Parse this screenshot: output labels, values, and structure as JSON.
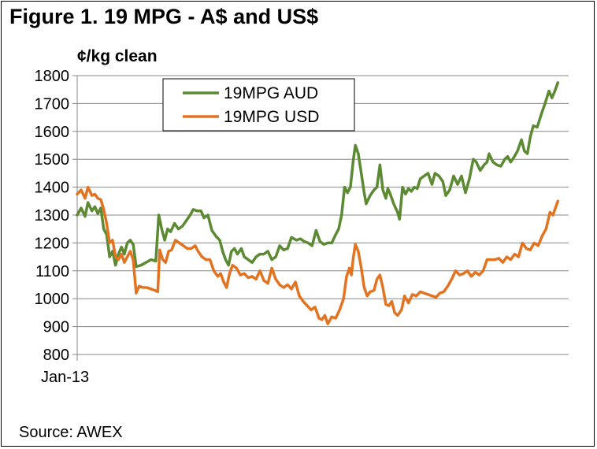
{
  "chart_data": {
    "type": "line",
    "title": "Figure 1. 19 MPG - A$  and US$",
    "ylabel": "¢/kg clean",
    "ylim": [
      800,
      1800
    ],
    "yticks": [
      800,
      900,
      1000,
      1100,
      1200,
      1300,
      1400,
      1500,
      1600,
      1700,
      1800
    ],
    "x_range": [
      0,
      100
    ],
    "xticks": [
      {
        "x": 0,
        "label": "Jan-13"
      }
    ],
    "grid": "horizontal",
    "legend_position": "top-center",
    "series": [
      {
        "name": "19MPG AUD",
        "color": "#5b8a32",
        "values": [
          [
            0,
            1300
          ],
          [
            0.8,
            1325
          ],
          [
            1.6,
            1295
          ],
          [
            2.2,
            1345
          ],
          [
            3,
            1315
          ],
          [
            3.6,
            1330
          ],
          [
            4.2,
            1305
          ],
          [
            4.8,
            1325
          ],
          [
            5.4,
            1250
          ],
          [
            6,
            1230
          ],
          [
            6.6,
            1150
          ],
          [
            7.2,
            1170
          ],
          [
            7.8,
            1120
          ],
          [
            8.4,
            1160
          ],
          [
            9,
            1185
          ],
          [
            9.6,
            1160
          ],
          [
            10.2,
            1200
          ],
          [
            10.8,
            1210
          ],
          [
            11.4,
            1195
          ],
          [
            12,
            1115
          ],
          [
            13,
            1120
          ],
          [
            14,
            1130
          ],
          [
            15,
            1140
          ],
          [
            16,
            1135
          ],
          [
            16.6,
            1300
          ],
          [
            17.2,
            1250
          ],
          [
            17.8,
            1210
          ],
          [
            18.4,
            1250
          ],
          [
            19,
            1240
          ],
          [
            19.8,
            1270
          ],
          [
            20.6,
            1250
          ],
          [
            21.4,
            1260
          ],
          [
            22.2,
            1280
          ],
          [
            23,
            1300
          ],
          [
            23.6,
            1320
          ],
          [
            24.4,
            1315
          ],
          [
            25.2,
            1315
          ],
          [
            25.8,
            1290
          ],
          [
            26.6,
            1300
          ],
          [
            27.4,
            1245
          ],
          [
            28.2,
            1225
          ],
          [
            29,
            1210
          ],
          [
            29.6,
            1170
          ],
          [
            30.2,
            1140
          ],
          [
            30.8,
            1120
          ],
          [
            31.4,
            1170
          ],
          [
            32,
            1180
          ],
          [
            32.6,
            1160
          ],
          [
            33.4,
            1180
          ],
          [
            34,
            1150
          ],
          [
            34.8,
            1140
          ],
          [
            35.6,
            1130
          ],
          [
            36.4,
            1150
          ],
          [
            37.2,
            1160
          ],
          [
            38,
            1160
          ],
          [
            38.8,
            1170
          ],
          [
            39.6,
            1140
          ],
          [
            40.4,
            1150
          ],
          [
            41.2,
            1190
          ],
          [
            42,
            1175
          ],
          [
            42.8,
            1180
          ],
          [
            43.6,
            1220
          ],
          [
            44.6,
            1210
          ],
          [
            45.4,
            1215
          ],
          [
            46.2,
            1205
          ],
          [
            47,
            1200
          ],
          [
            47.8,
            1190
          ],
          [
            48.6,
            1245
          ],
          [
            49.4,
            1205
          ],
          [
            50.2,
            1195
          ],
          [
            51,
            1200
          ],
          [
            51.8,
            1200
          ],
          [
            52.6,
            1230
          ],
          [
            53.2,
            1250
          ],
          [
            53.8,
            1300
          ],
          [
            54.4,
            1400
          ],
          [
            55,
            1380
          ],
          [
            55.6,
            1400
          ],
          [
            56.2,
            1500
          ],
          [
            56.6,
            1550
          ],
          [
            57.2,
            1520
          ],
          [
            57.8,
            1450
          ],
          [
            58.4,
            1380
          ],
          [
            58.8,
            1340
          ],
          [
            59.6,
            1370
          ],
          [
            60.4,
            1390
          ],
          [
            61,
            1400
          ],
          [
            61.6,
            1480
          ],
          [
            62.2,
            1390
          ],
          [
            62.8,
            1360
          ],
          [
            63.2,
            1395
          ],
          [
            63.6,
            1380
          ],
          [
            64.4,
            1340
          ],
          [
            65.2,
            1310
          ],
          [
            65.6,
            1285
          ],
          [
            66.2,
            1400
          ],
          [
            66.8,
            1375
          ],
          [
            67.4,
            1395
          ],
          [
            68,
            1385
          ],
          [
            68.6,
            1400
          ],
          [
            69.2,
            1395
          ],
          [
            69.8,
            1430
          ],
          [
            70.6,
            1440
          ],
          [
            71.4,
            1450
          ],
          [
            72.2,
            1410
          ],
          [
            72.8,
            1450
          ],
          [
            73.6,
            1440
          ],
          [
            74.4,
            1420
          ],
          [
            75,
            1370
          ],
          [
            75.8,
            1390
          ],
          [
            76.6,
            1440
          ],
          [
            77.4,
            1410
          ],
          [
            78.2,
            1440
          ],
          [
            79,
            1380
          ],
          [
            79.8,
            1430
          ],
          [
            80.6,
            1500
          ],
          [
            81.2,
            1490
          ],
          [
            82,
            1460
          ],
          [
            82.8,
            1480
          ],
          [
            83.4,
            1490
          ],
          [
            83.8,
            1520
          ],
          [
            84.6,
            1490
          ],
          [
            85.4,
            1480
          ],
          [
            86.2,
            1475
          ],
          [
            87,
            1500
          ],
          [
            87.6,
            1510
          ],
          [
            88.2,
            1490
          ],
          [
            88.8,
            1505
          ],
          [
            89.6,
            1530
          ],
          [
            90.4,
            1570
          ],
          [
            91,
            1530
          ],
          [
            91.6,
            1520
          ],
          [
            92.2,
            1580
          ],
          [
            92.8,
            1620
          ],
          [
            93.6,
            1615
          ],
          [
            94.4,
            1660
          ],
          [
            95.2,
            1700
          ],
          [
            96,
            1745
          ],
          [
            96.6,
            1720
          ],
          [
            97.2,
            1745
          ],
          [
            97.8,
            1775
          ]
        ]
      },
      {
        "name": "19MPG USD",
        "color": "#e27421",
        "values": [
          [
            0,
            1375
          ],
          [
            0.8,
            1390
          ],
          [
            1.6,
            1360
          ],
          [
            2.2,
            1400
          ],
          [
            3,
            1370
          ],
          [
            3.6,
            1375
          ],
          [
            4.2,
            1360
          ],
          [
            4.8,
            1355
          ],
          [
            5.4,
            1320
          ],
          [
            6,
            1270
          ],
          [
            6.6,
            1200
          ],
          [
            7.2,
            1210
          ],
          [
            7.8,
            1150
          ],
          [
            8.4,
            1140
          ],
          [
            9,
            1160
          ],
          [
            9.6,
            1130
          ],
          [
            10.2,
            1150
          ],
          [
            10.8,
            1170
          ],
          [
            11.4,
            1140
          ],
          [
            12,
            1020
          ],
          [
            12.6,
            1045
          ],
          [
            13.4,
            1040
          ],
          [
            14.2,
            1040
          ],
          [
            15,
            1035
          ],
          [
            15.8,
            1030
          ],
          [
            16.4,
            1025
          ],
          [
            16.8,
            1175
          ],
          [
            17.4,
            1140
          ],
          [
            18,
            1130
          ],
          [
            18.6,
            1170
          ],
          [
            19.2,
            1175
          ],
          [
            20,
            1210
          ],
          [
            20.8,
            1200
          ],
          [
            21.6,
            1190
          ],
          [
            22.4,
            1180
          ],
          [
            23.2,
            1180
          ],
          [
            24,
            1190
          ],
          [
            24.6,
            1170
          ],
          [
            25.4,
            1150
          ],
          [
            26.2,
            1140
          ],
          [
            27,
            1140
          ],
          [
            27.8,
            1100
          ],
          [
            28.6,
            1080
          ],
          [
            29.2,
            1090
          ],
          [
            29.8,
            1060
          ],
          [
            30.4,
            1040
          ],
          [
            31,
            1090
          ],
          [
            31.6,
            1120
          ],
          [
            32.4,
            1110
          ],
          [
            33.2,
            1085
          ],
          [
            34,
            1090
          ],
          [
            34.8,
            1075
          ],
          [
            35.6,
            1080
          ],
          [
            36.4,
            1070
          ],
          [
            37.2,
            1100
          ],
          [
            38,
            1065
          ],
          [
            38.8,
            1055
          ],
          [
            39.6,
            1110
          ],
          [
            40.4,
            1070
          ],
          [
            41.2,
            1050
          ],
          [
            42,
            1040
          ],
          [
            42.8,
            1050
          ],
          [
            43.6,
            1035
          ],
          [
            44.4,
            1060
          ],
          [
            45.2,
            1010
          ],
          [
            46,
            990
          ],
          [
            46.8,
            975
          ],
          [
            47.6,
            960
          ],
          [
            48.4,
            970
          ],
          [
            49.2,
            930
          ],
          [
            49.8,
            925
          ],
          [
            50.4,
            940
          ],
          [
            51,
            910
          ],
          [
            51.8,
            935
          ],
          [
            52.6,
            930
          ],
          [
            53.4,
            960
          ],
          [
            54.2,
            1000
          ],
          [
            54.8,
            1080
          ],
          [
            55.4,
            1110
          ],
          [
            55.8,
            1085
          ],
          [
            56.2,
            1150
          ],
          [
            56.6,
            1195
          ],
          [
            57.2,
            1170
          ],
          [
            57.8,
            1110
          ],
          [
            58.4,
            1040
          ],
          [
            59,
            1010
          ],
          [
            59.6,
            1025
          ],
          [
            60.4,
            1030
          ],
          [
            61,
            1070
          ],
          [
            61.6,
            1085
          ],
          [
            62.2,
            1040
          ],
          [
            62.8,
            980
          ],
          [
            63.4,
            975
          ],
          [
            64,
            990
          ],
          [
            64.6,
            950
          ],
          [
            65.2,
            940
          ],
          [
            66,
            960
          ],
          [
            66.6,
            1010
          ],
          [
            67.4,
            985
          ],
          [
            68.2,
            1015
          ],
          [
            69,
            1010
          ],
          [
            69.8,
            1025
          ],
          [
            70.6,
            1020
          ],
          [
            71.4,
            1015
          ],
          [
            72.2,
            1010
          ],
          [
            73,
            1005
          ],
          [
            73.8,
            1020
          ],
          [
            74.6,
            1025
          ],
          [
            75.4,
            1045
          ],
          [
            76.2,
            1070
          ],
          [
            77,
            1100
          ],
          [
            77.8,
            1085
          ],
          [
            78.6,
            1090
          ],
          [
            79.4,
            1100
          ],
          [
            80.2,
            1080
          ],
          [
            81,
            1095
          ],
          [
            81.8,
            1085
          ],
          [
            82.6,
            1100
          ],
          [
            83.4,
            1140
          ],
          [
            84.2,
            1140
          ],
          [
            85,
            1140
          ],
          [
            85.8,
            1145
          ],
          [
            86.6,
            1130
          ],
          [
            87.4,
            1150
          ],
          [
            88.2,
            1140
          ],
          [
            89,
            1160
          ],
          [
            89.8,
            1150
          ],
          [
            90.6,
            1200
          ],
          [
            91.4,
            1180
          ],
          [
            92.2,
            1175
          ],
          [
            93,
            1200
          ],
          [
            93.8,
            1190
          ],
          [
            94.6,
            1225
          ],
          [
            95.4,
            1250
          ],
          [
            96.2,
            1310
          ],
          [
            96.8,
            1300
          ],
          [
            97.4,
            1330
          ],
          [
            97.8,
            1350
          ]
        ]
      }
    ]
  },
  "source": "Source: AWEX"
}
